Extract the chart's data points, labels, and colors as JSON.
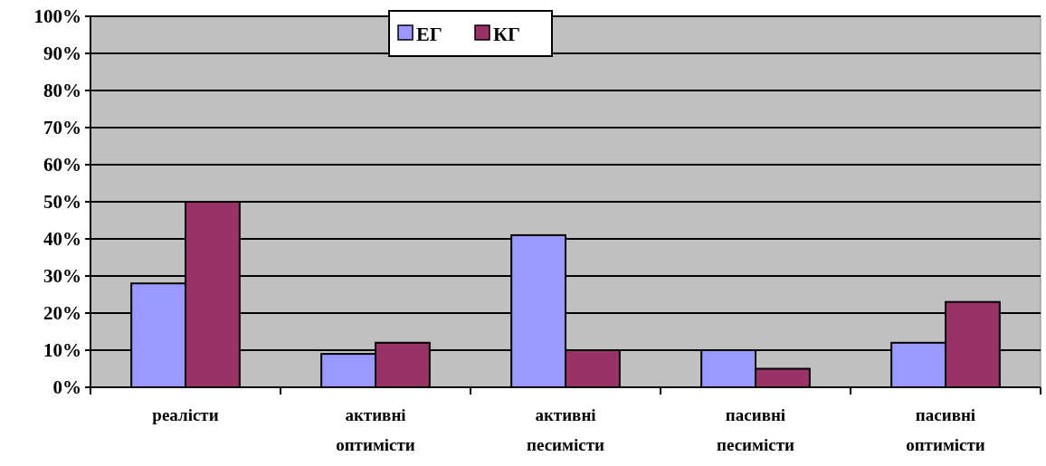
{
  "chart_data": {
    "type": "bar",
    "categories": [
      "реалісти",
      "активні оптимісти",
      "активні песимісти",
      "пасивні песимісти",
      "пасивні оптимісти"
    ],
    "series": [
      {
        "name": "ЕГ",
        "color": "#9999ff",
        "values": [
          28,
          9,
          41,
          10,
          12
        ]
      },
      {
        "name": "КГ",
        "color": "#993366",
        "values": [
          50,
          12,
          10,
          5,
          23
        ]
      }
    ],
    "ylim": [
      0,
      100
    ],
    "yticks": [
      {
        "value": 0,
        "label": "0%"
      },
      {
        "value": 10,
        "label": "10%"
      },
      {
        "value": 20,
        "label": "20%"
      },
      {
        "value": 30,
        "label": "30%"
      },
      {
        "value": 40,
        "label": "40%"
      },
      {
        "value": 50,
        "label": "50%"
      },
      {
        "value": 60,
        "label": "60%"
      },
      {
        "value": 70,
        "label": "70%"
      },
      {
        "value": 80,
        "label": "80%"
      },
      {
        "value": 90,
        "label": "90%"
      },
      {
        "value": 100,
        "label": "100%"
      }
    ],
    "grid": "y",
    "legend": "top"
  }
}
